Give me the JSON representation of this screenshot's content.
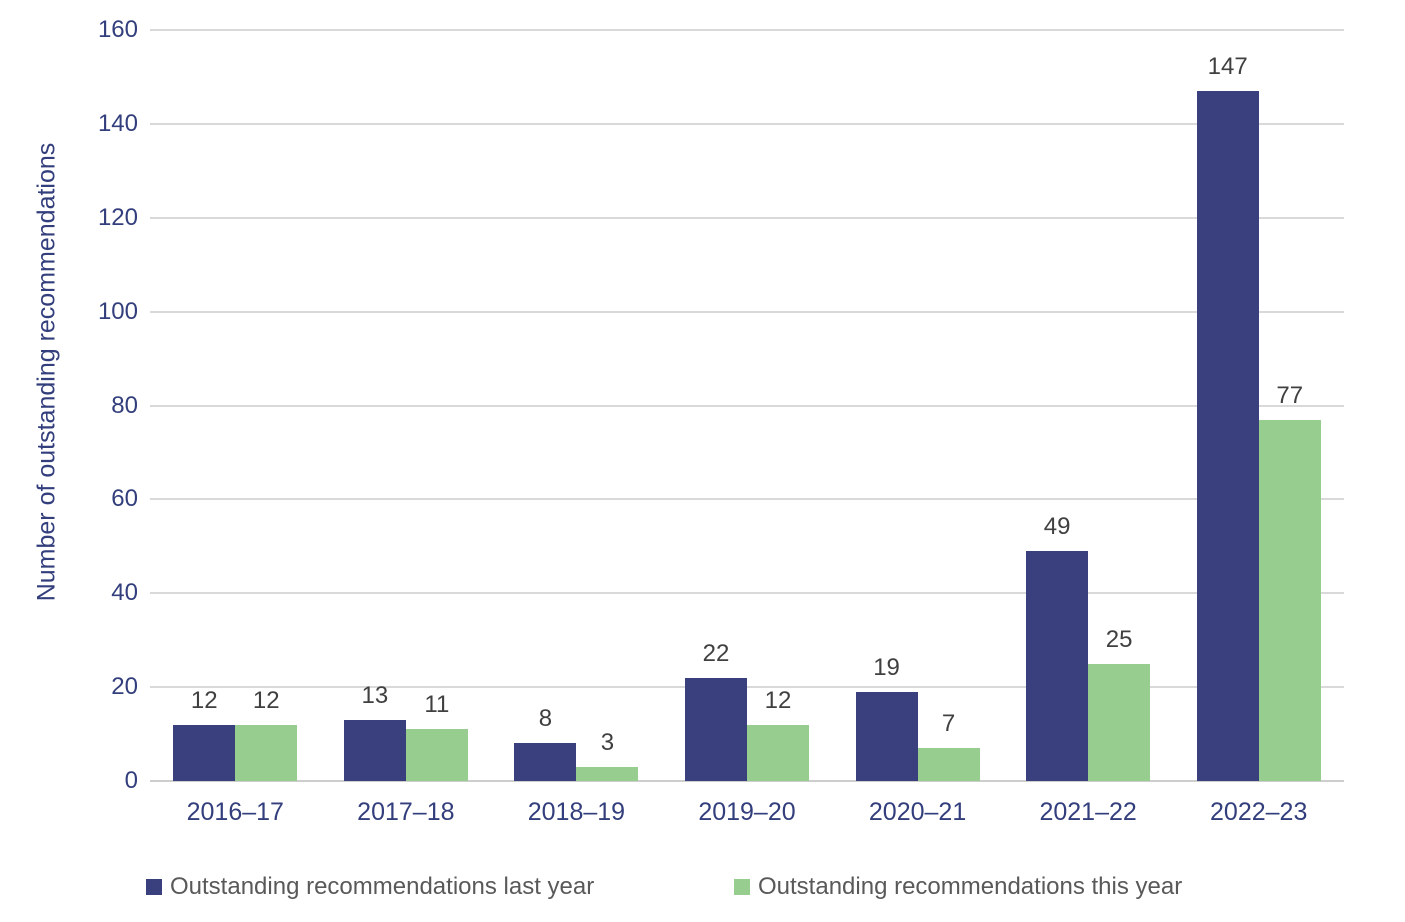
{
  "chart_data": {
    "type": "bar",
    "title": "",
    "xlabel": "",
    "ylabel": "Number of outstanding recommendations",
    "categories": [
      "2016–17",
      "2017–18",
      "2018–19",
      "2019–20",
      "2020–21",
      "2021–22",
      "2022–23"
    ],
    "series": [
      {
        "name": "Outstanding recommendations last year",
        "color": "#3a3f7d",
        "values": [
          12,
          13,
          8,
          22,
          19,
          49,
          147
        ]
      },
      {
        "name": "Outstanding recommendations this year",
        "color": "#97ce90",
        "values": [
          12,
          11,
          3,
          12,
          7,
          25,
          77
        ]
      }
    ],
    "ylim": [
      0,
      160
    ],
    "yticks": [
      0,
      20,
      40,
      60,
      80,
      100,
      120,
      140,
      160
    ],
    "grid": "horizontal",
    "data_labels": true,
    "legend_position": "bottom"
  },
  "colors": {
    "series_last_year": "#3a3f7d",
    "series_this_year": "#97ce90",
    "gridline": "#d9d9d9",
    "axis_text": "#333e7c",
    "data_label_text": "#404040",
    "legend_text": "#595959",
    "background": "#ffffff"
  }
}
